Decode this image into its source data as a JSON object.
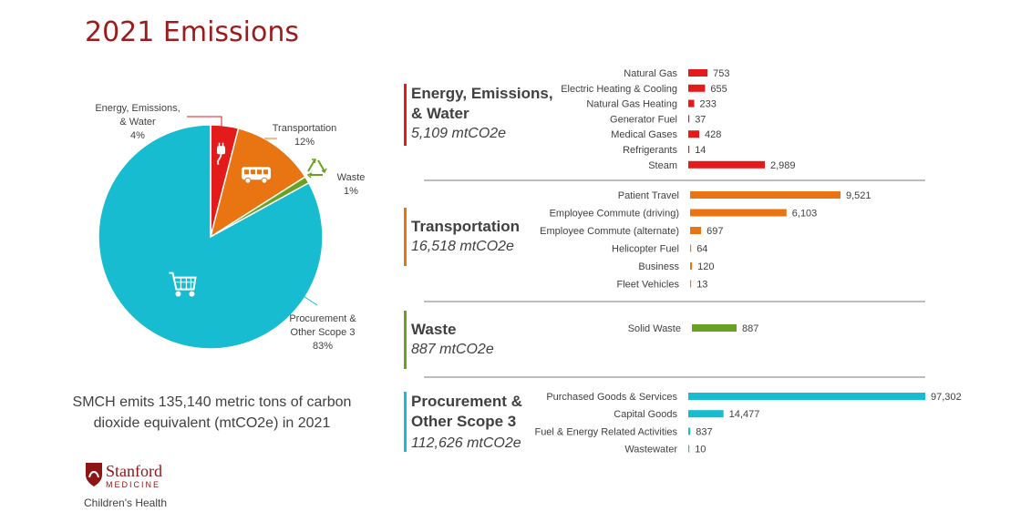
{
  "title": "2021 Emissions",
  "summary": "SMCH emits 135,140 metric tons of carbon dioxide equivalent (mtCO2e) in 2021",
  "logo": {
    "name": "Stanford",
    "sub": "MEDICINE",
    "unit": "Children's Health"
  },
  "colors": {
    "energy": "#e31b1b",
    "transportation": "#e87412",
    "waste": "#6aa121",
    "procurement": "#17bcd0",
    "title": "#9b1c1c"
  },
  "icons": {
    "energy": "plug-icon",
    "transportation": "bus-icon",
    "waste": "recycle-icon",
    "procurement": "shopping-cart-icon"
  },
  "chart_data": [
    {
      "type": "pie",
      "labels": [
        "Energy, Emissions, & Water",
        "Transportation",
        "Waste",
        "Procurement & Other Scope 3"
      ],
      "label_lines": [
        [
          "Energy, Emissions,",
          "& Water"
        ],
        [
          "Transportation"
        ],
        [
          "Waste"
        ],
        [
          "Procurement &",
          "Other Scope 3"
        ]
      ],
      "values": [
        4,
        12,
        1,
        83
      ],
      "pct_labels": [
        "4%",
        "12%",
        "1%",
        "83%"
      ]
    },
    {
      "type": "bar",
      "orientation": "horizontal",
      "groups": [
        {
          "key": "energy",
          "title_lines": [
            "Energy, Emissions,",
            "& Water"
          ],
          "total": "5,109 mtCO2e",
          "categories": [
            "Natural Gas",
            "Electric Heating & Cooling",
            "Natural Gas Heating",
            "Generator Fuel",
            "Medical Gases",
            "Refrigerants",
            "Steam"
          ],
          "values": [
            753,
            655,
            233,
            37,
            428,
            14,
            2989
          ],
          "value_labels": [
            "753",
            "655",
            "233",
            "37",
            "428",
            "14",
            "2,989"
          ]
        },
        {
          "key": "transportation",
          "title_lines": [
            "Transportation"
          ],
          "total": "16,518 mtCO2e",
          "categories": [
            "Patient Travel",
            "Employee Commute (driving)",
            "Employee Commute (alternate)",
            "Helicopter Fuel",
            "Business",
            "Fleet Vehicles"
          ],
          "values": [
            9521,
            6103,
            697,
            64,
            120,
            13
          ],
          "value_labels": [
            "9,521",
            "6,103",
            "697",
            "64",
            "120",
            "13"
          ]
        },
        {
          "key": "waste",
          "title_lines": [
            "Waste"
          ],
          "total": "887 mtCO2e",
          "categories": [
            "Solid Waste"
          ],
          "values": [
            887
          ],
          "value_labels": [
            "887"
          ]
        },
        {
          "key": "procurement",
          "title_lines": [
            "Procurement &",
            "Other Scope 3"
          ],
          "total": "112,626 mtCO2e",
          "categories": [
            "Purchased Goods & Services",
            "Capital Goods",
            "Fuel & Energy Related Activities",
            "Wastewater"
          ],
          "values": [
            97302,
            14477,
            837,
            10
          ],
          "value_labels": [
            "97,302",
            "14,477",
            "837",
            "10"
          ]
        }
      ]
    }
  ]
}
